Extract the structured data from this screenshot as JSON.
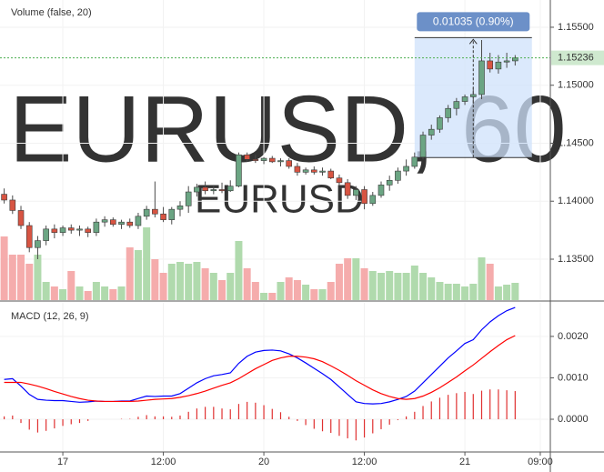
{
  "chart_data": [
    {
      "type": "candlestick",
      "indicator_label": "Volume (false, 20)",
      "watermark": "EURUSD, 60",
      "watermark_sub": "EURUSD",
      "categories": [
        null,
        null,
        null,
        null,
        null,
        null,
        null,
        null,
        null,
        null,
        null,
        null,
        null,
        null,
        null,
        null,
        null,
        null,
        null,
        null,
        null,
        null,
        null,
        null,
        null,
        null,
        null,
        null,
        null,
        null,
        null,
        null,
        null,
        null,
        null,
        null,
        null,
        null,
        null,
        null,
        null,
        null,
        null,
        null,
        null,
        null,
        null,
        null,
        null,
        null,
        null,
        null,
        null,
        null,
        null,
        null,
        null,
        null,
        null,
        null,
        null,
        null
      ],
      "xlim": [
        -0.5,
        65.2
      ],
      "xticks": [
        {
          "value": 7,
          "label": "17"
        },
        {
          "value": 19,
          "label": "12:00"
        },
        {
          "value": 31,
          "label": "20"
        },
        {
          "value": 43,
          "label": "12:00"
        },
        {
          "value": 55,
          "label": "21"
        },
        {
          "value": 64,
          "label": "09:00"
        }
      ],
      "ylim": [
        1.13147,
        1.15735
      ],
      "yticks": [
        {
          "value": 1.135,
          "label": "1.13500"
        },
        {
          "value": 1.14,
          "label": "1.14000"
        },
        {
          "value": 1.145,
          "label": "1.14500"
        },
        {
          "value": 1.15,
          "label": "1.15000"
        },
        {
          "value": 1.155,
          "label": "1.15500"
        }
      ],
      "open": [
        1.1406,
        1.1401,
        1.1392,
        1.1379,
        1.136,
        1.1366,
        1.1376,
        1.1373,
        1.1377,
        1.1375,
        1.1376,
        1.1373,
        1.1382,
        1.1384,
        1.138,
        1.1382,
        1.1379,
        1.1387,
        1.1393,
        1.1389,
        1.1384,
        1.1393,
        1.1396,
        1.1408,
        1.1412,
        1.1409,
        1.141,
        1.1409,
        1.1413,
        1.144,
        1.1436,
        1.1435,
        1.1437,
        1.1434,
        1.1435,
        1.143,
        1.1425,
        1.1427,
        1.1425,
        1.1426,
        1.142,
        1.1416,
        1.1405,
        1.141,
        1.1398,
        1.1405,
        1.1414,
        1.1418,
        1.1426,
        1.143,
        1.1438,
        1.1457,
        1.1462,
        1.1472,
        1.148,
        1.1486,
        1.149,
        1.1492,
        1.1521,
        1.1514,
        1.152,
        1.1521
      ],
      "high": [
        1.1411,
        1.1405,
        1.1396,
        1.1382,
        1.137,
        1.1379,
        1.138,
        1.1379,
        1.138,
        1.1379,
        1.1378,
        1.1385,
        1.1387,
        1.1386,
        1.1384,
        1.1385,
        1.139,
        1.1396,
        1.1417,
        1.1395,
        1.1395,
        1.14,
        1.1413,
        1.1415,
        1.1417,
        1.1414,
        1.1416,
        1.1418,
        1.1442,
        1.1442,
        1.144,
        1.1438,
        1.1439,
        1.1437,
        1.1437,
        1.1433,
        1.1429,
        1.143,
        1.1429,
        1.1428,
        1.1423,
        1.1419,
        1.1413,
        1.1413,
        1.1408,
        1.1417,
        1.1422,
        1.1429,
        1.1436,
        1.1442,
        1.146,
        1.1466,
        1.1474,
        1.1483,
        1.1489,
        1.1492,
        1.1498,
        1.1539,
        1.1528,
        1.1526,
        1.1528,
        1.1526
      ],
      "low": [
        1.1398,
        1.1389,
        1.1376,
        1.1356,
        1.135,
        1.1362,
        1.1368,
        1.137,
        1.1372,
        1.137,
        1.1369,
        1.137,
        1.1378,
        1.1378,
        1.1376,
        1.1377,
        1.1376,
        1.1384,
        1.1386,
        1.1382,
        1.138,
        1.1387,
        1.139,
        1.1404,
        1.1406,
        1.1406,
        1.1407,
        1.1408,
        1.1412,
        1.1434,
        1.1433,
        1.1432,
        1.1433,
        1.143,
        1.1428,
        1.1422,
        1.1423,
        1.1423,
        1.1422,
        1.1419,
        1.1414,
        1.1402,
        1.1401,
        1.1393,
        1.1396,
        1.1403,
        1.1409,
        1.1415,
        1.1422,
        1.1428,
        1.1436,
        1.1453,
        1.1459,
        1.1468,
        1.1474,
        1.1483,
        1.1484,
        1.1488,
        1.1511,
        1.151,
        1.1515,
        1.1517
      ],
      "close": [
        1.1401,
        1.1392,
        1.1379,
        1.136,
        1.1366,
        1.1376,
        1.1373,
        1.1377,
        1.1375,
        1.1376,
        1.1373,
        1.1382,
        1.1384,
        1.138,
        1.1382,
        1.1379,
        1.1387,
        1.1393,
        1.1389,
        1.1384,
        1.1393,
        1.1396,
        1.1408,
        1.1412,
        1.1409,
        1.141,
        1.1409,
        1.1413,
        1.144,
        1.1436,
        1.1435,
        1.1437,
        1.1434,
        1.1435,
        1.143,
        1.1425,
        1.1427,
        1.1425,
        1.1426,
        1.142,
        1.1416,
        1.1405,
        1.141,
        1.1398,
        1.1405,
        1.1414,
        1.1418,
        1.1426,
        1.143,
        1.1438,
        1.1457,
        1.1462,
        1.1472,
        1.148,
        1.1486,
        1.149,
        1.1492,
        1.1521,
        1.1514,
        1.152,
        1.1521,
        1.15236
      ],
      "volume": [
        70,
        50,
        50,
        40,
        50,
        20,
        15,
        12,
        32,
        15,
        10,
        20,
        15,
        12,
        15,
        58,
        55,
        80,
        45,
        30,
        40,
        42,
        40,
        42,
        35,
        30,
        22,
        30,
        65,
        35,
        20,
        8,
        8,
        20,
        25,
        22,
        17,
        12,
        12,
        20,
        40,
        46,
        46,
        35,
        32,
        30,
        32,
        30,
        30,
        38,
        30,
        25,
        20,
        18,
        18,
        15,
        18,
        47,
        40,
        15,
        17,
        19
      ],
      "up_color": "#6ba583",
      "down_color": "#d75442",
      "wick_color": "#4a4a4a",
      "volume_up_color": "#a7d6a4",
      "volume_down_color": "#f4a3a3",
      "last_price": 1.15236,
      "last_price_color": "#4caf50",
      "measure": {
        "from": 1.14376,
        "to": 1.15411,
        "x_from": 49,
        "x_to": 63,
        "label": "0.01035 (0.90%)",
        "color": "#cfe2fb",
        "label_color": "#6c90c8"
      }
    },
    {
      "type": "line",
      "indicator_label": "MACD (12, 26, 9)",
      "ylim": [
        -0.00079,
        0.00281
      ],
      "yticks": [
        {
          "value": 0,
          "label": "0.0000"
        },
        {
          "value": 0.001,
          "label": "0.0010"
        },
        {
          "value": 0.002,
          "label": "0.0020"
        }
      ],
      "series": [
        {
          "color": "#0000ff",
          "values": [
            0.00096,
            0.00098,
            0.0008,
            0.0006,
            0.00048,
            0.00046,
            0.00045,
            0.00045,
            0.00043,
            0.00041,
            0.00042,
            0.00044,
            0.00043,
            0.00043,
            0.00044,
            0.00044,
            0.0005,
            0.00056,
            0.00055,
            0.00056,
            0.00056,
            0.00062,
            0.00075,
            0.00088,
            0.00098,
            0.00105,
            0.00108,
            0.00112,
            0.00135,
            0.00152,
            0.00162,
            0.00166,
            0.00167,
            0.00165,
            0.00158,
            0.00148,
            0.00136,
            0.00123,
            0.0011,
            0.00096,
            0.00078,
            0.0006,
            0.00042,
            0.00038,
            0.00037,
            0.00038,
            0.00042,
            0.00048,
            0.00055,
            0.00068,
            0.00088,
            0.00108,
            0.00128,
            0.00148,
            0.00165,
            0.00183,
            0.00192,
            0.00216,
            0.00235,
            0.0025,
            0.00262,
            0.0027
          ]
        },
        {
          "color": "#ff0000",
          "values": [
            0.00089,
            0.00089,
            0.00089,
            0.00085,
            0.0008,
            0.00074,
            0.00067,
            0.00061,
            0.00055,
            0.0005,
            0.00046,
            0.00044,
            0.00043,
            0.00043,
            0.00043,
            0.00043,
            0.00044,
            0.00046,
            0.00048,
            0.00049,
            0.0005,
            0.00053,
            0.00057,
            0.00062,
            0.00068,
            0.00075,
            0.00082,
            0.00088,
            0.00098,
            0.0011,
            0.00122,
            0.00132,
            0.00142,
            0.00148,
            0.00152,
            0.00152,
            0.0015,
            0.00146,
            0.00139,
            0.00129,
            0.00118,
            0.00106,
            0.00093,
            0.00082,
            0.00071,
            0.00062,
            0.00055,
            0.0005,
            0.00048,
            0.0005,
            0.00056,
            0.00065,
            0.00076,
            0.00089,
            0.00102,
            0.00117,
            0.00131,
            0.00147,
            0.00163,
            0.00178,
            0.00192,
            0.00202
          ]
        }
      ],
      "histogram": {
        "color": "#e03030",
        "values": [
          7e-05,
          9e-05,
          -9e-05,
          -0.00025,
          -0.00032,
          -0.00028,
          -0.00022,
          -0.00016,
          -0.00012,
          -9e-05,
          -4e-05,
          0,
          0,
          0,
          1e-05,
          1e-05,
          6e-05,
          0.0001,
          7e-05,
          7e-05,
          6e-05,
          9e-05,
          0.00018,
          0.00026,
          0.0003,
          0.0003,
          0.00026,
          0.00024,
          0.00037,
          0.00042,
          0.0004,
          0.00034,
          0.00025,
          0.00017,
          6e-05,
          -4e-05,
          -0.00014,
          -0.00023,
          -0.00029,
          -0.00033,
          -0.0004,
          -0.00046,
          -0.00051,
          -0.00044,
          -0.00034,
          -0.00024,
          -0.00013,
          -2e-05,
          7e-05,
          0.00018,
          0.00032,
          0.00043,
          0.00052,
          0.00059,
          0.00063,
          0.00066,
          0.00061,
          0.00069,
          0.00072,
          0.00072,
          0.0007,
          0.00068
        ]
      }
    }
  ]
}
